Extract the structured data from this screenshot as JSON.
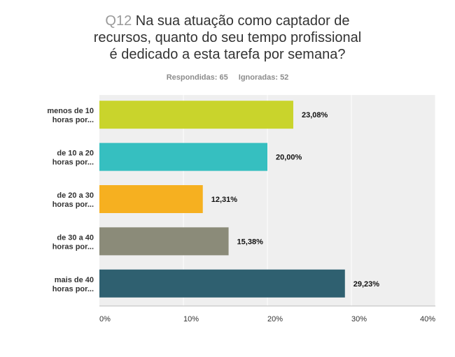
{
  "question": {
    "number": "Q12",
    "title_lines": [
      "Na sua atuação como captador de",
      "recursos, quanto do seu tempo profissional",
      "é dedicado a esta tarefa por semana?"
    ]
  },
  "stats": {
    "answered": "Respondidas: 65",
    "skipped": "Ignoradas: 52"
  },
  "chart_data": {
    "type": "bar",
    "orientation": "horizontal",
    "categories": [
      [
        "menos de 10",
        "horas por..."
      ],
      [
        "de 10 a 20",
        "horas por..."
      ],
      [
        "de 20 a 30",
        "horas por..."
      ],
      [
        "de 30 a 40",
        "horas por..."
      ],
      [
        "mais de 40",
        "horas por..."
      ]
    ],
    "values": [
      23.08,
      20.0,
      12.31,
      15.38,
      29.23
    ],
    "value_labels": [
      "23,08%",
      "20,00%",
      "12,31%",
      "15,38%",
      "29,23%"
    ],
    "colors": [
      "#c9d42c",
      "#36bfc0",
      "#f6b020",
      "#8b8b79",
      "#2f6070"
    ],
    "xlim": [
      0,
      40
    ],
    "x_ticks": [
      0,
      10,
      20,
      30,
      40
    ],
    "x_tick_labels": [
      "0%",
      "10%",
      "20%",
      "30%",
      "40%"
    ],
    "grid": true,
    "background": "#efefef"
  }
}
